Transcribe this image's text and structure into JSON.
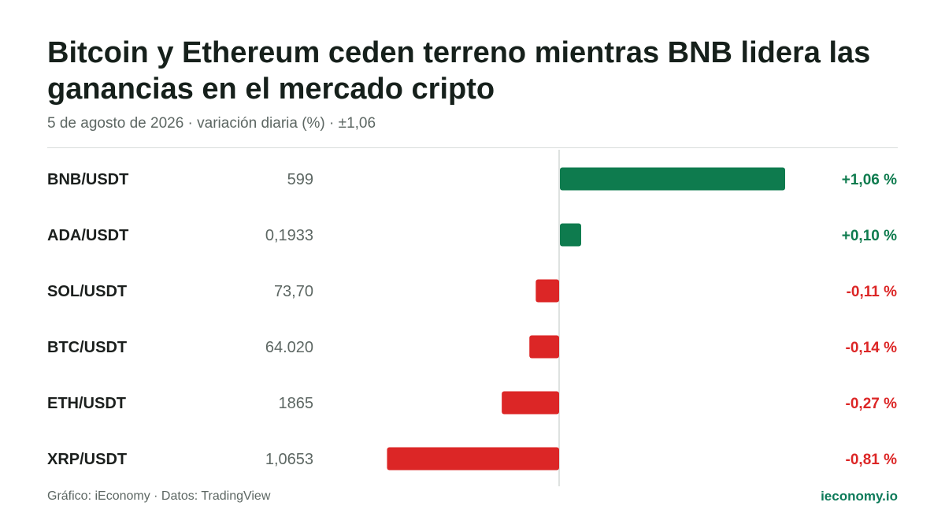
{
  "title": "Bitcoin y Ethereum ceden terreno mientras BNB lidera las ganancias en el mercado cripto",
  "subtitle": "5 de agosto de 2026 · variación diaria (%) · ±1,06",
  "footer": {
    "source": "Gráfico: iEconomy · Datos: TradingView",
    "brand": "ieconomy.io"
  },
  "colors": {
    "positive": "#0e7b4e",
    "negative": "#dc2626",
    "label": "#1b1f1d",
    "price": "#5d6763",
    "axis": "#d4d8d6"
  },
  "chart_data": {
    "type": "bar",
    "orientation": "horizontal",
    "categories": [
      "BNB/USDT",
      "ADA/USDT",
      "SOL/USDT",
      "BTC/USDT",
      "ETH/USDT",
      "XRP/USDT"
    ],
    "prices": [
      "599",
      "0,1933",
      "73,70",
      "64.020",
      "1865",
      "1,0653"
    ],
    "values": [
      1.06,
      0.1,
      -0.11,
      -0.14,
      -0.27,
      -0.81
    ],
    "value_labels": [
      "+1,06 %",
      "+0,10 %",
      "-0,11 %",
      "-0,14 %",
      "-0,27 %",
      "-0,81 %"
    ],
    "xlim": [
      -1.06,
      1.06
    ],
    "grid": false,
    "legend": "none"
  }
}
